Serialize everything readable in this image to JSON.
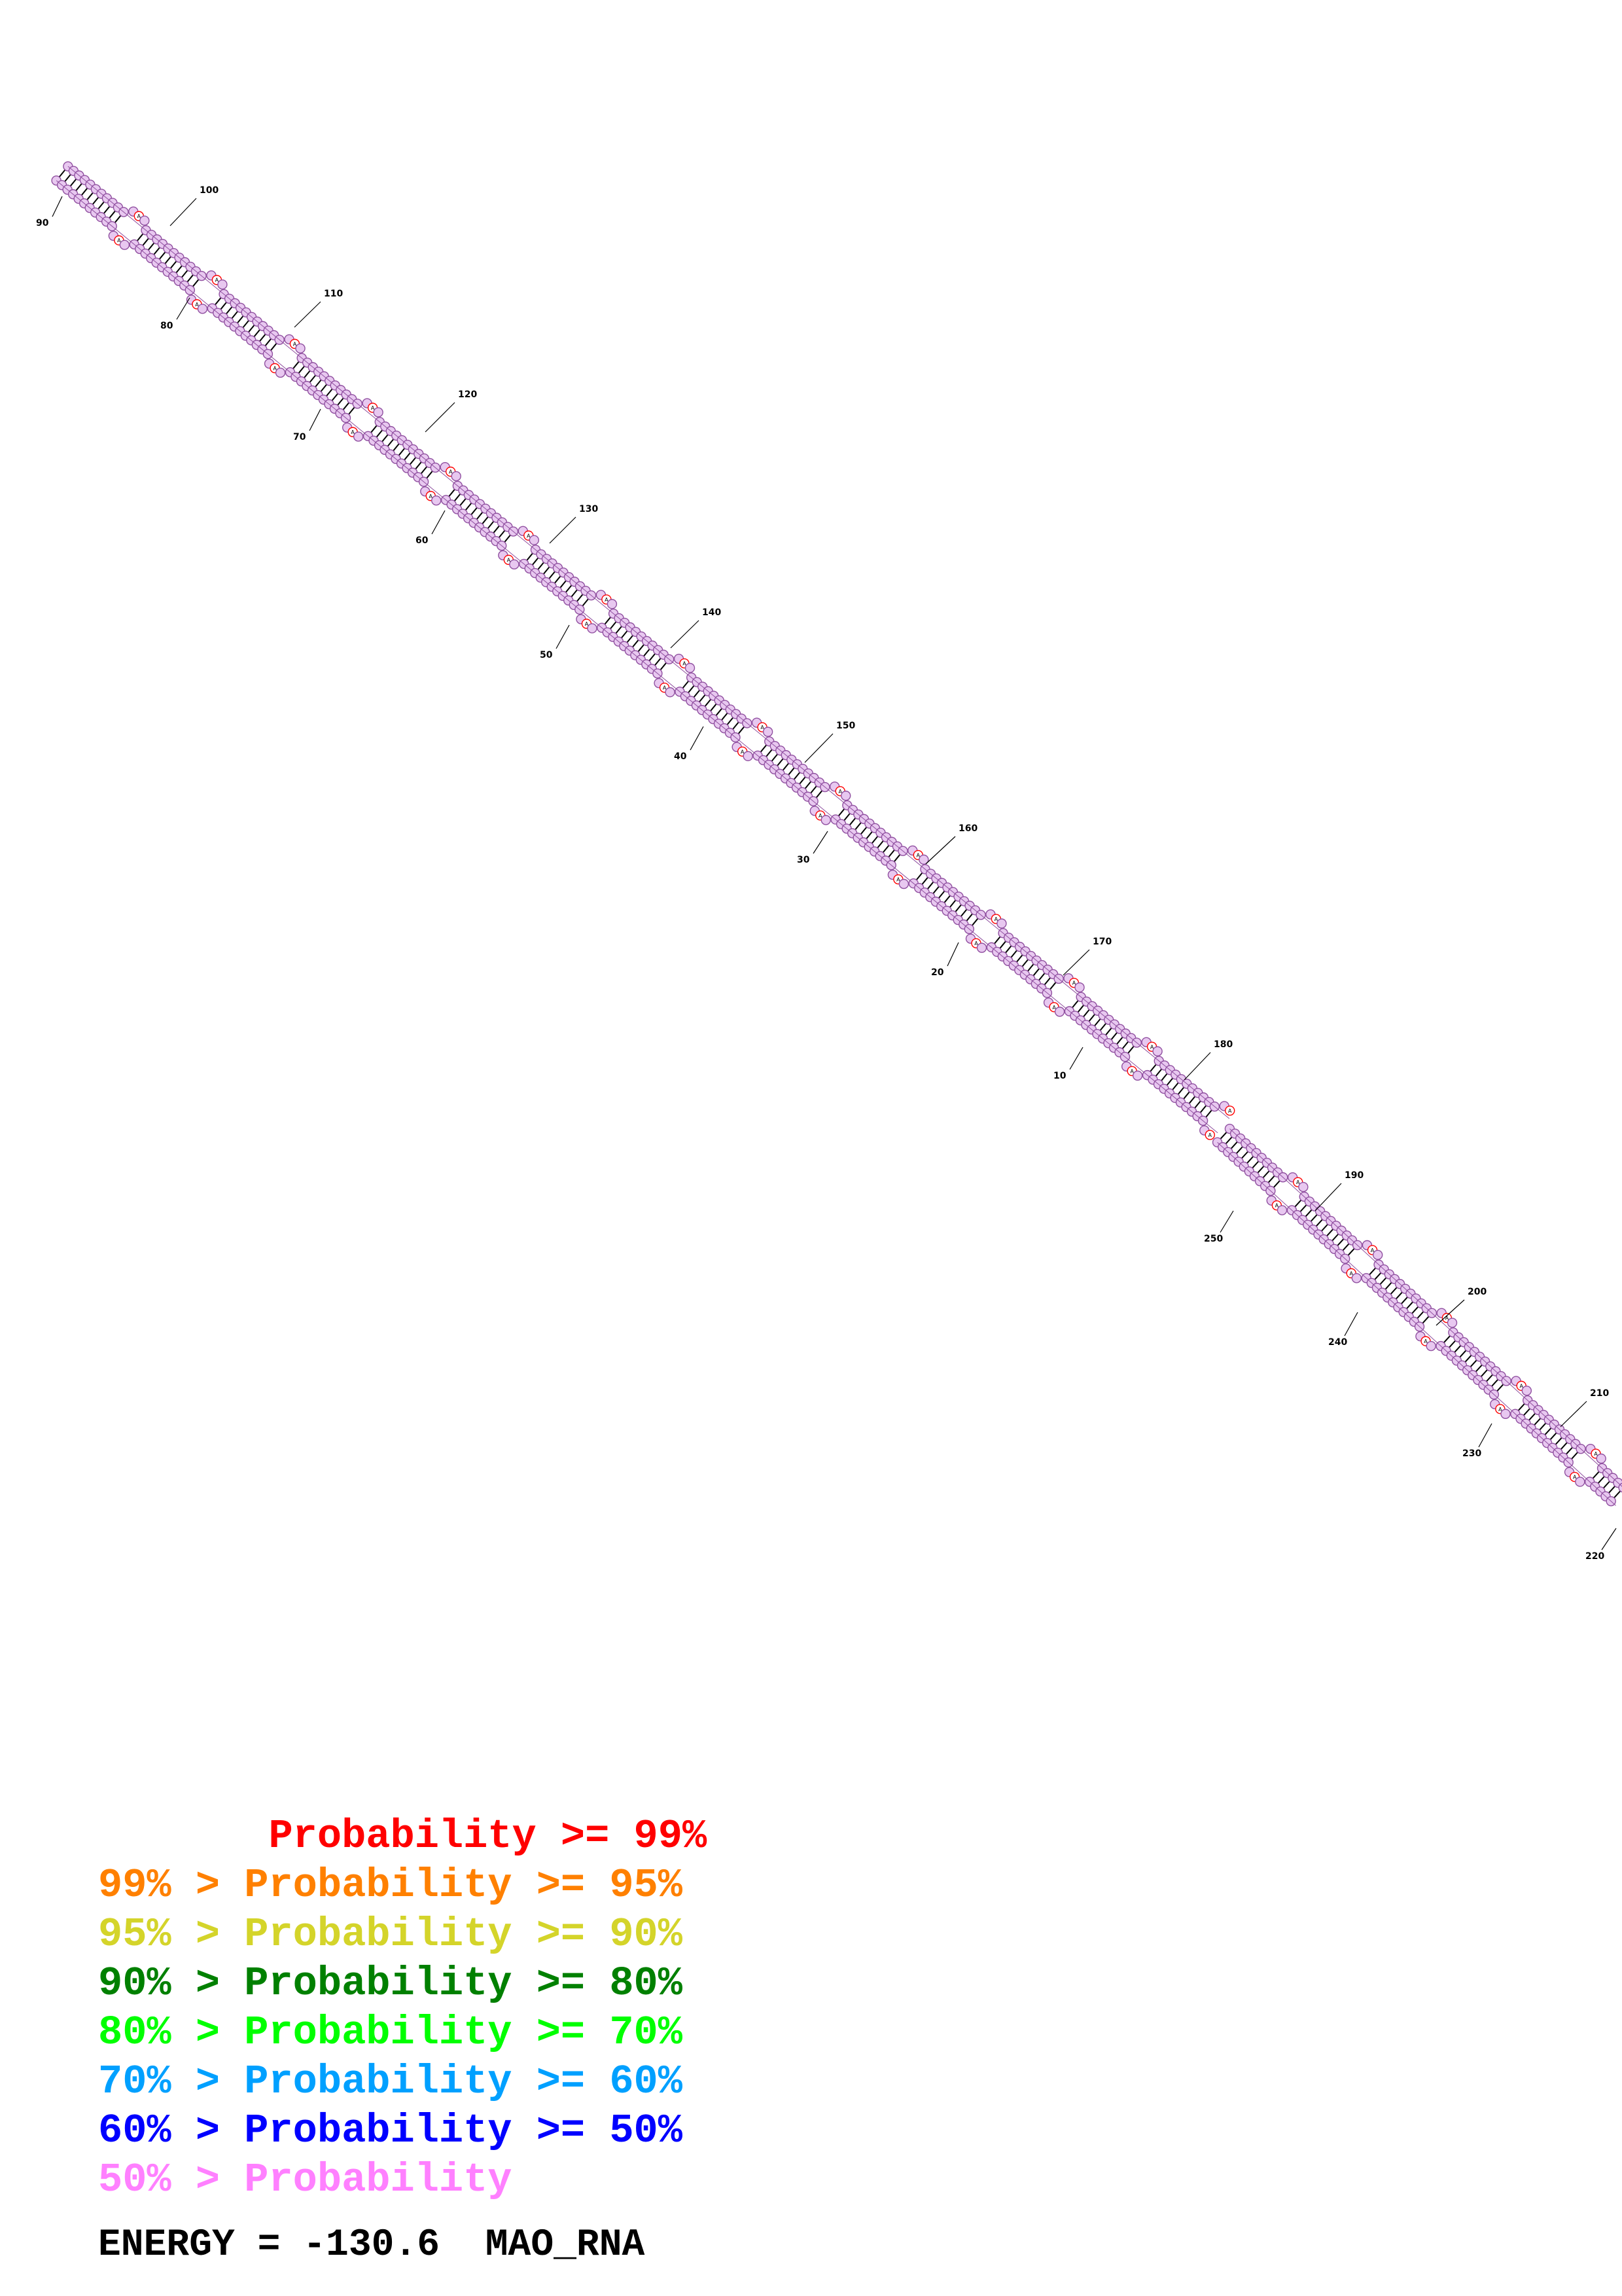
{
  "structure": {
    "energy_label": "ENERGY = -130.6",
    "molecule_name": "MAO_RNA",
    "unpaired_base_letter": "A",
    "pos_labels": [
      "10",
      "20",
      "30",
      "40",
      "50",
      "60",
      "70",
      "80",
      "90",
      "100",
      "110",
      "120",
      "130",
      "140",
      "150",
      "160",
      "170",
      "180",
      "190",
      "200",
      "210",
      "220",
      "230",
      "240",
      "250"
    ]
  },
  "legend": [
    {
      "prefix": "       ",
      "text": "Probability >= 99%",
      "color": "#ff0000"
    },
    {
      "prefix": "99% > ",
      "text": "Probability >= 95%",
      "color": "#ff8000"
    },
    {
      "prefix": "95% > ",
      "text": "Probability >= 90%",
      "color": "#d4d42a"
    },
    {
      "prefix": "90% > ",
      "text": "Probability >= 80%",
      "color": "#008000"
    },
    {
      "prefix": "80% > ",
      "text": "Probability >= 70%",
      "color": "#00ff00"
    },
    {
      "prefix": "70% > ",
      "text": "Probability >= 60%",
      "color": "#00a0ff"
    },
    {
      "prefix": "60% > ",
      "text": "Probability >= 50%",
      "color": "#0000ff"
    },
    {
      "prefix": "50% > ",
      "text": "Probability",
      "color": "#ff80ff"
    }
  ],
  "colors": {
    "paired_base_fill": "#e8c8f0",
    "paired_base_stroke": "#9050a0",
    "unpaired_base_stroke": "#ff0000",
    "backbone": "#000000"
  }
}
